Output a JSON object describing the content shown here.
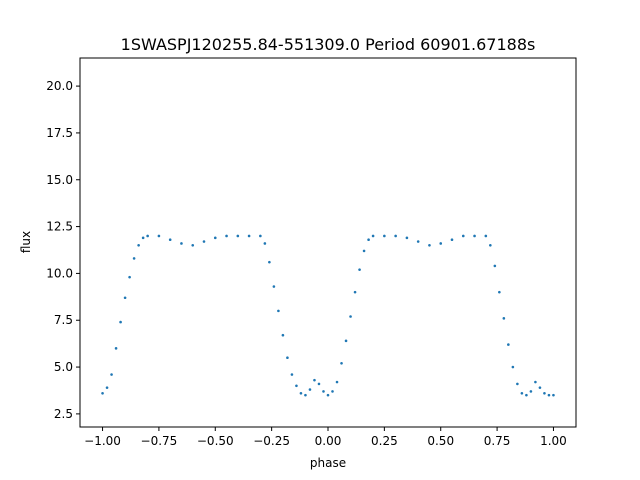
{
  "chart_data": {
    "type": "scatter",
    "title": "1SWASPJ120255.84-551309.0 Period 60901.67188s",
    "xlabel": "phase",
    "ylabel": "flux",
    "xlim": [
      -1.1,
      1.1
    ],
    "ylim": [
      1.8,
      21.5
    ],
    "grid": false,
    "legend": "none",
    "marker_color": "#1f77b4",
    "x_ticks": [
      -1.0,
      -0.75,
      -0.5,
      -0.25,
      0.0,
      0.25,
      0.5,
      0.75,
      1.0
    ],
    "x_tick_labels": [
      "−1.00",
      "−0.75",
      "−0.50",
      "−0.25",
      "0.00",
      "0.25",
      "0.50",
      "0.75",
      "1.00"
    ],
    "y_ticks": [
      2.5,
      5.0,
      7.5,
      10.0,
      12.5,
      15.0,
      17.5,
      20.0
    ],
    "y_tick_labels": [
      "2.5",
      "5.0",
      "7.5",
      "10.0",
      "12.5",
      "15.0",
      "17.5",
      "20.0"
    ],
    "series": [
      {
        "x": [
          -1.0,
          -0.98,
          -0.96,
          -0.94,
          -0.92,
          -0.9,
          -0.88,
          -0.86,
          -0.84,
          -0.82,
          -0.8,
          -0.75,
          -0.7,
          -0.65,
          -0.6,
          -0.55,
          -0.5,
          -0.45,
          -0.4,
          -0.35,
          -0.3,
          -0.28,
          -0.26,
          -0.24,
          -0.22,
          -0.2,
          -0.18,
          -0.16,
          -0.14,
          -0.12,
          -0.1,
          -0.08,
          -0.06,
          -0.04,
          -0.02,
          0.0,
          0.02,
          0.04,
          0.06,
          0.08,
          0.1,
          0.12,
          0.14,
          0.16,
          0.18,
          0.2,
          0.25,
          0.3,
          0.35,
          0.4,
          0.45,
          0.5,
          0.55,
          0.6,
          0.65,
          0.7,
          0.72,
          0.74,
          0.76,
          0.78,
          0.8,
          0.82,
          0.84,
          0.86,
          0.88,
          0.9,
          0.92,
          0.94,
          0.96,
          0.98,
          1.0
        ],
        "y": [
          3.6,
          3.9,
          4.6,
          6.0,
          7.4,
          8.7,
          9.8,
          10.8,
          11.5,
          11.9,
          12.0,
          12.0,
          11.8,
          11.6,
          11.5,
          11.7,
          11.9,
          12.0,
          12.0,
          12.0,
          12.0,
          11.6,
          10.6,
          9.3,
          8.0,
          6.7,
          5.5,
          4.6,
          4.0,
          3.6,
          3.5,
          3.8,
          4.3,
          4.1,
          3.7,
          3.5,
          3.7,
          4.2,
          5.2,
          6.4,
          7.7,
          9.0,
          10.2,
          11.2,
          11.8,
          12.0,
          12.0,
          12.0,
          11.9,
          11.7,
          11.5,
          11.6,
          11.8,
          12.0,
          12.0,
          12.0,
          11.5,
          10.4,
          9.0,
          7.6,
          6.2,
          5.0,
          4.1,
          3.6,
          3.5,
          3.7,
          4.2,
          3.9,
          3.6,
          3.5,
          3.5
        ]
      }
    ]
  }
}
